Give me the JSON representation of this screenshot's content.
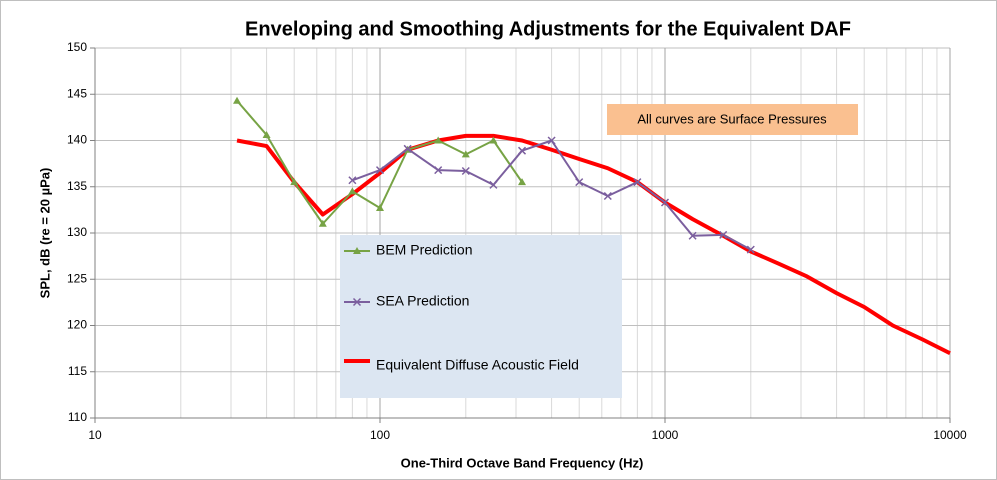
{
  "chart_data": {
    "type": "line",
    "title": "Enveloping and Smoothing Adjustments for the Equivalent DAF",
    "xlabel": "One-Third Octave Band Frequency (Hz)",
    "ylabel": "SPL, dB (re = 20 µPa)",
    "annotation": "All curves are Surface Pressures",
    "xscale": "log",
    "xlim": [
      10,
      10000
    ],
    "xticks": [
      10,
      100,
      1000,
      10000
    ],
    "ylim": [
      110,
      150
    ],
    "yticks": [
      110,
      115,
      120,
      125,
      130,
      135,
      140,
      145,
      150
    ],
    "grid": true,
    "series": [
      {
        "name": "BEM Prediction",
        "color": "#77a345",
        "marker": "triangle",
        "x": [
          31.5,
          40,
          50,
          63,
          80,
          100,
          125,
          160,
          200,
          250,
          315
        ],
        "values": [
          144.3,
          140.6,
          135.5,
          131,
          134.5,
          132.7,
          139,
          140,
          138.5,
          140,
          135.5
        ]
      },
      {
        "name": "SEA Prediction",
        "color": "#7b5f9e",
        "marker": "x",
        "x": [
          80,
          100,
          125,
          160,
          200,
          250,
          315,
          400,
          500,
          630,
          800,
          1000,
          1250,
          1600,
          2000
        ],
        "values": [
          135.7,
          136.8,
          139.1,
          136.8,
          136.7,
          135.2,
          138.9,
          140,
          135.5,
          134,
          135.5,
          133.3,
          129.7,
          129.8,
          128.2
        ]
      },
      {
        "name": "Equivalent Diffuse Acoustic Field",
        "color": "#ff0000",
        "marker": "none",
        "x": [
          31.5,
          40,
          50,
          63,
          80,
          100,
          125,
          160,
          200,
          250,
          315,
          400,
          500,
          630,
          800,
          1000,
          1250,
          1600,
          2000,
          2500,
          3150,
          4000,
          5000,
          6300,
          8000,
          10000
        ],
        "values": [
          140,
          139.4,
          135.5,
          132,
          134.2,
          136.5,
          139,
          140,
          140.5,
          140.5,
          140,
          139,
          138,
          137,
          135.5,
          133.3,
          131.5,
          129.7,
          128,
          126.7,
          125.3,
          123.5,
          122,
          120,
          118.5,
          117
        ]
      }
    ]
  }
}
